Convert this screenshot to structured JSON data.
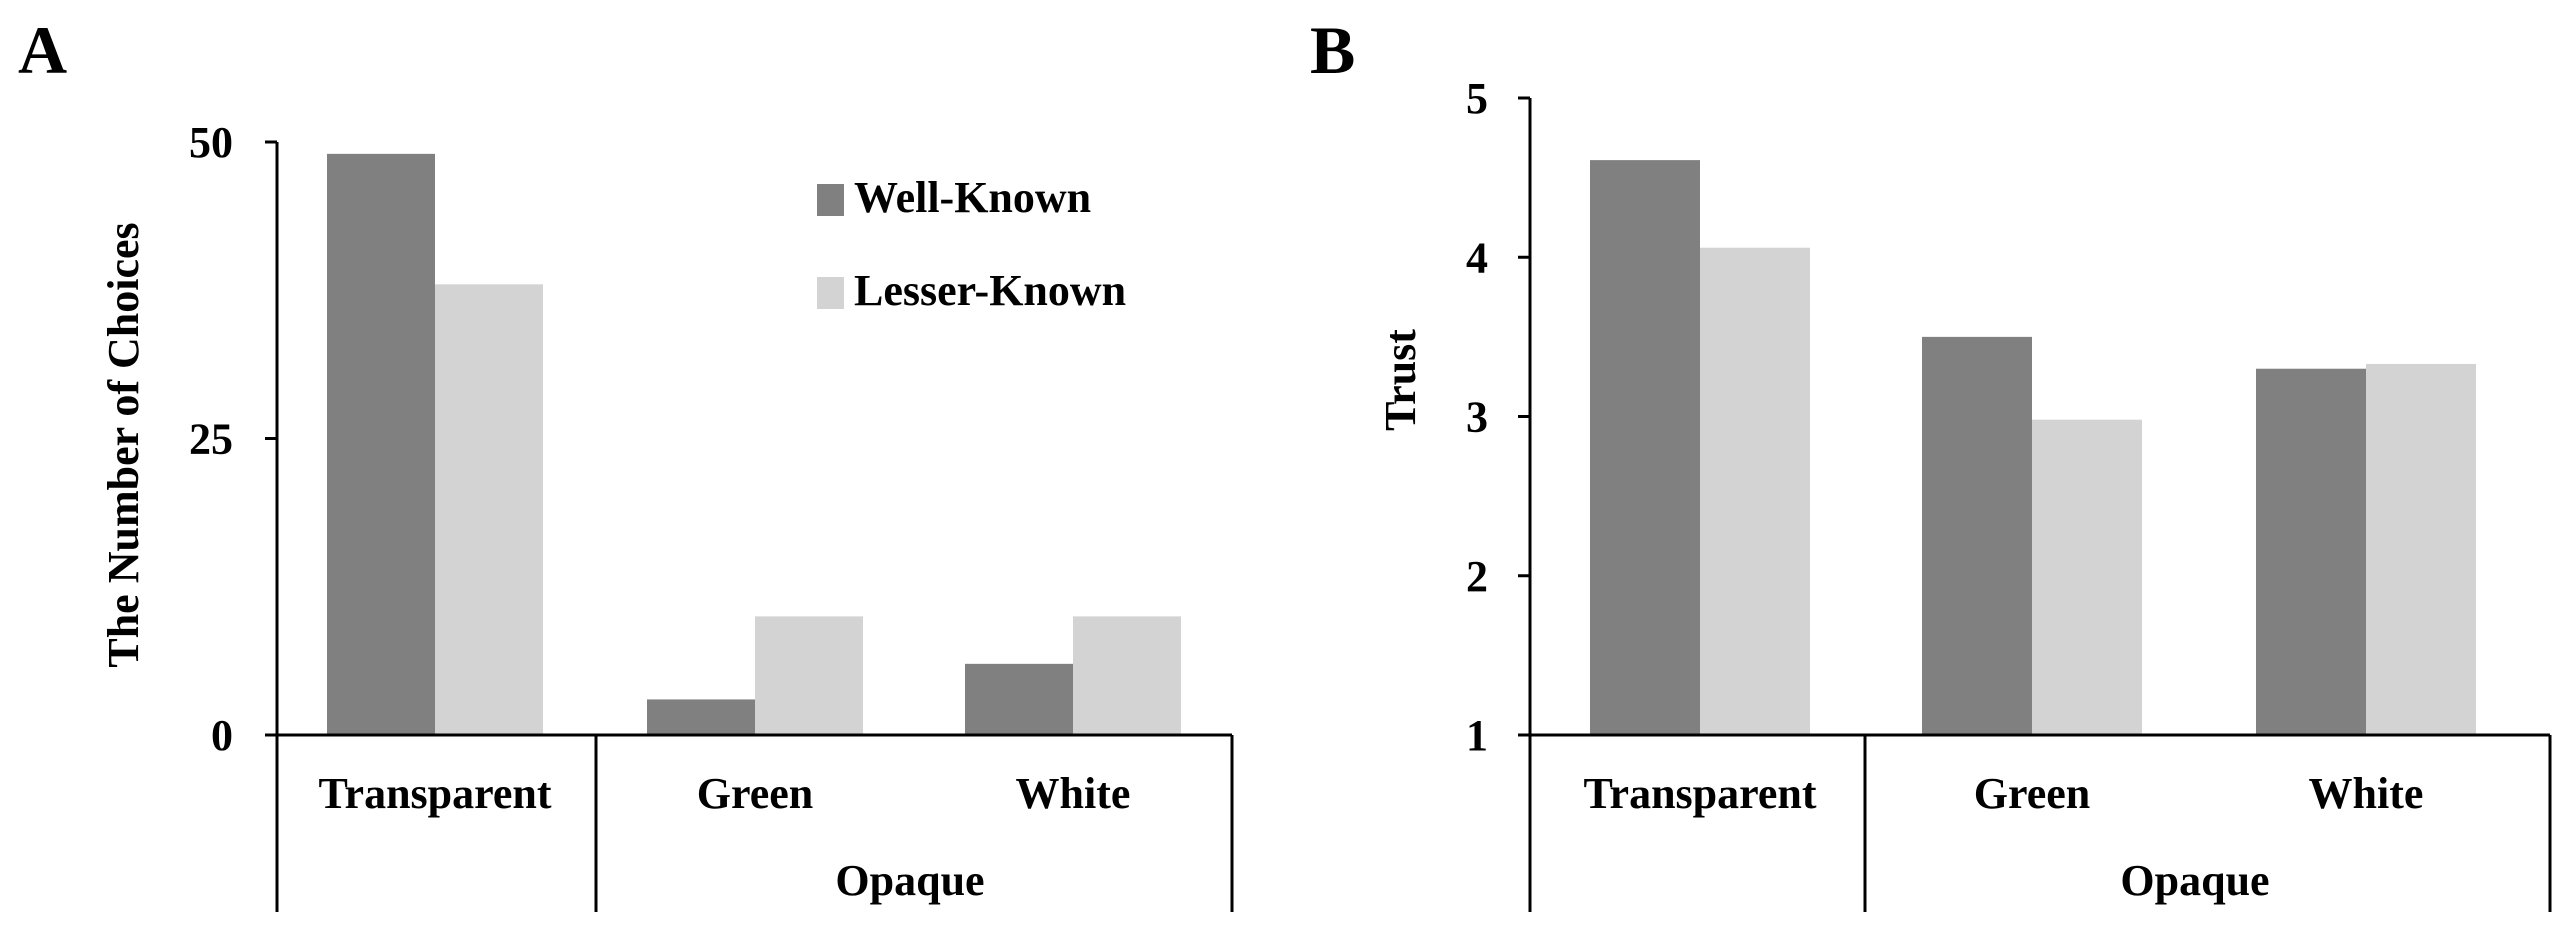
{
  "chart_data": [
    {
      "panel": "A",
      "type": "bar",
      "title": "",
      "xlabel": "",
      "ylabel": "The Number of Choices",
      "ylim": [
        0,
        50
      ],
      "yticks": [
        "0",
        "25",
        "50"
      ],
      "ytick_values": [
        0,
        25,
        50
      ],
      "categories": [
        "Transparent",
        "Green",
        "White"
      ],
      "group_label": "Opaque",
      "series": [
        {
          "name": "Well-Known",
          "color": "#808080",
          "values": [
            49,
            3,
            6
          ]
        },
        {
          "name": "Lesser-Known",
          "color": "#d3d3d3",
          "values": [
            38,
            10,
            10
          ]
        }
      ],
      "legend_position": "top-right",
      "grid": false
    },
    {
      "panel": "B",
      "type": "bar",
      "title": "",
      "xlabel": "",
      "ylabel": "Trust",
      "ylim": [
        1,
        5
      ],
      "yticks": [
        "1",
        "2",
        "3",
        "4",
        "5"
      ],
      "ytick_values": [
        1,
        2,
        3,
        4,
        5
      ],
      "categories": [
        "Transparent",
        "Green",
        "White"
      ],
      "group_label": "Opaque",
      "series": [
        {
          "name": "Well-Known",
          "color": "#808080",
          "values": [
            4.61,
            3.5,
            3.3
          ]
        },
        {
          "name": "Lesser-Known",
          "color": "#d3d3d3",
          "values": [
            4.06,
            2.98,
            3.33
          ]
        }
      ],
      "grid": false
    }
  ]
}
